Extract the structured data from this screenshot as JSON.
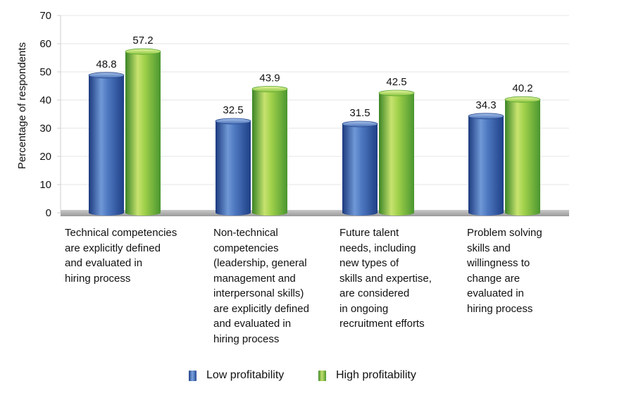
{
  "chart_data": {
    "type": "bar",
    "categories": [
      "Technical competencies are explicitly defined and evaluated in hiring process",
      "Non-technical competencies (leadership, general management and interpersonal skills) are explicitly defined and evaluated in hiring process",
      "Future talent needs, including new types of skills and expertise, are considered in ongoing recruitment efforts",
      "Problem solving skills and willingness to change are evaluated in hiring process"
    ],
    "category_lines": [
      [
        "Technical competencies",
        "are explicitly defined",
        "and evaluated in",
        "hiring process"
      ],
      [
        "Non-technical",
        "competencies",
        "(leadership, general",
        "management and",
        "interpersonal skills)",
        "are explicitly defined",
        "and evaluated in",
        "hiring process"
      ],
      [
        "Future talent",
        "needs, including",
        "new types of",
        "skills and expertise,",
        "are considered",
        "in ongoing",
        "recruitment efforts"
      ],
      [
        "Problem solving",
        "skills and",
        "willingness to",
        "change are",
        "evaluated in",
        "hiring process"
      ]
    ],
    "series": [
      {
        "name": "Low profitability",
        "values": [
          48.8,
          32.5,
          31.5,
          34.3
        ],
        "color": "#2f55a4"
      },
      {
        "name": "High profitability",
        "values": [
          57.2,
          43.9,
          42.5,
          40.2
        ],
        "color": "#8cc63f"
      }
    ],
    "title": "",
    "xlabel": "",
    "ylabel": "Percentage of respondents",
    "ylim": [
      0,
      70
    ],
    "yticks": [
      0,
      10,
      20,
      30,
      40,
      50,
      60,
      70
    ],
    "grid": true,
    "legend_position": "bottom-center"
  }
}
